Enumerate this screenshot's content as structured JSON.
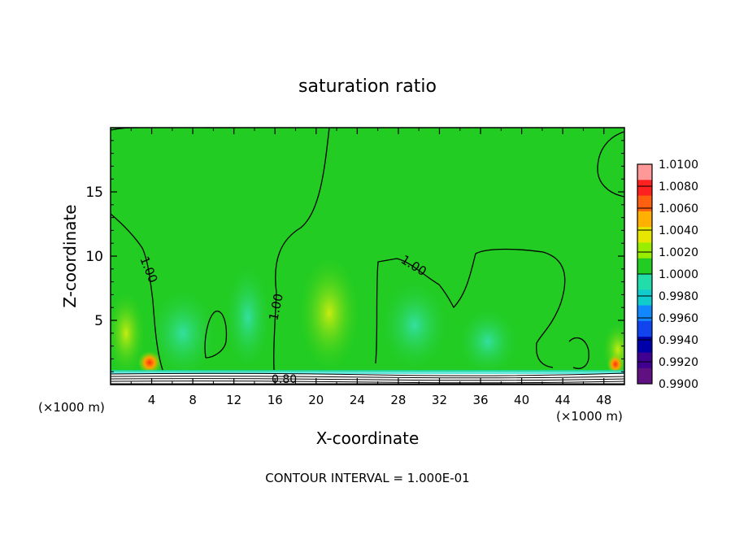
{
  "chart_data": {
    "type": "heatmap",
    "title": "saturation ratio",
    "xlabel": "X-coordinate",
    "ylabel": "Z-coordinate",
    "x_unit_left": "(×1000 m)",
    "x_unit_right": "(×1000 m)",
    "x_ticks": [
      "4",
      "8",
      "12",
      "16",
      "20",
      "24",
      "28",
      "32",
      "36",
      "40",
      "44",
      "48"
    ],
    "y_ticks": [
      "5",
      "10",
      "15"
    ],
    "xlim": [
      0,
      50
    ],
    "ylim": [
      0,
      20
    ],
    "footer": "CONTOUR INTERVAL = 1.000E-01",
    "contour_labels": [
      "1.00",
      "1.00",
      "1.00",
      "0.80"
    ],
    "colorbar": {
      "labels": [
        "1.0100",
        "1.0080",
        "1.0060",
        "1.0040",
        "1.0020",
        "1.0000",
        "0.9980",
        "0.9960",
        "0.9940",
        "0.9920",
        "0.9900"
      ],
      "colors": [
        "#ff9999",
        "#ff2020",
        "#ff6010",
        "#ffb000",
        "#e6e600",
        "#99ee00",
        "#22cc22",
        "#22ddaa",
        "#11cccc",
        "#1188ff",
        "#1144ee",
        "#0000aa",
        "#400090",
        "#601080"
      ]
    }
  }
}
